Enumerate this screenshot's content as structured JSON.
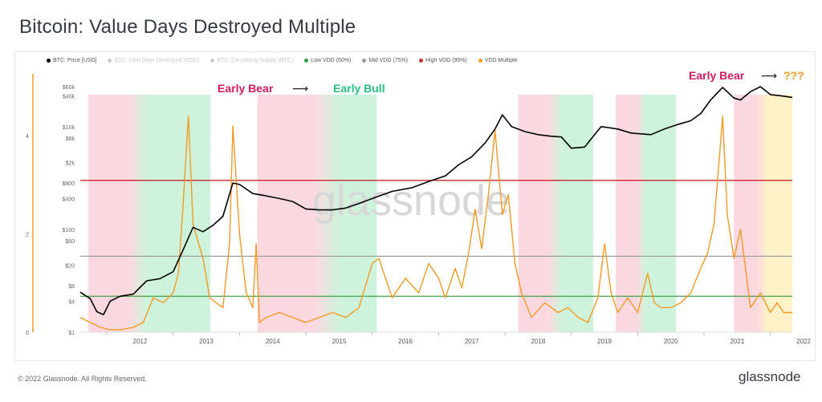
{
  "title": "Bitcoin: Value Days Destroyed Multiple",
  "copyright": "© 2022 Glassnode. All Rights Reserved.",
  "brand": "glassnode",
  "watermark": "glassnode",
  "legend": [
    {
      "label": "BTC: Price [USD]",
      "color": "#000000",
      "faded": false
    },
    {
      "label": "BTC: Coin Days Destroyed (CDD)",
      "color": "#cccccc",
      "faded": true
    },
    {
      "label": "BTC: Circulating Supply (BTC)",
      "color": "#cccccc",
      "faded": true
    },
    {
      "label": "Low VDD (50%)",
      "color": "#2ea043",
      "faded": false
    },
    {
      "label": "Mid VDD (75%)",
      "color": "#9a9a9a",
      "faded": false
    },
    {
      "label": "High VDD (95%)",
      "color": "#d43333",
      "faded": false
    },
    {
      "label": "VDD Multiple",
      "color": "#f59a23",
      "faded": false
    }
  ],
  "annotations": {
    "early_bear_1": "Early Bear",
    "early_bull": "Early Bull",
    "early_bear_2": "Early Bear",
    "question": "???"
  },
  "colors": {
    "bear_zone": "#fbd4dc",
    "bull_zone": "#c9f2d8",
    "yellow_zone": "#fdf0c2",
    "price": "#000000",
    "vdd": "#f59a23",
    "low_line": "#43a047",
    "mid_line": "#9e9e9e",
    "high_line": "#c62828",
    "bear_text": "#d81b60",
    "bull_text": "#26c281"
  },
  "chart_data": {
    "type": "line",
    "title": "Bitcoin: Value Days Destroyed Multiple",
    "x_ticks": [
      "2012",
      "2013",
      "2014",
      "2015",
      "2016",
      "2017",
      "2018",
      "2019",
      "2020",
      "2021",
      "2022"
    ],
    "price_axis": {
      "scale": "log",
      "ticks": [
        "$1",
        "$4",
        "$8",
        "$20",
        "$60",
        "$100",
        "$400",
        "$800",
        "$2k",
        "$6k",
        "$10k",
        "$40k",
        "$60k"
      ],
      "range": [
        1,
        80000
      ]
    },
    "vdd_axis": {
      "ticks": [
        "0",
        "2",
        "4"
      ],
      "range": [
        0,
        5
      ]
    },
    "thresholds": [
      {
        "name": "Low VDD (50%)",
        "price_axis_level": 5
      },
      {
        "name": "Mid VDD (75%)",
        "price_axis_level": 30
      },
      {
        "name": "High VDD (95%)",
        "price_axis_level": 900
      }
    ],
    "zones": [
      {
        "kind": "bear",
        "start": 2011.72,
        "end": 2012.6
      },
      {
        "kind": "bull",
        "start": 2012.6,
        "end": 2013.56
      },
      {
        "kind": "bear",
        "start": 2014.27,
        "end": 2015.5
      },
      {
        "kind": "bull",
        "start": 2015.5,
        "end": 2016.07
      },
      {
        "kind": "bear",
        "start": 2018.2,
        "end": 2018.85
      },
      {
        "kind": "bull",
        "start": 2018.85,
        "end": 2019.33
      },
      {
        "kind": "bear",
        "start": 2019.67,
        "end": 2020.12
      },
      {
        "kind": "bull",
        "start": 2020.12,
        "end": 2020.58
      },
      {
        "kind": "bear",
        "start": 2021.45,
        "end": 2021.95
      },
      {
        "kind": "yellow",
        "start": 2021.95,
        "end": 2022.33
      }
    ],
    "series": [
      {
        "name": "BTC: Price [USD]",
        "x": [
          2011.6,
          2011.75,
          2011.85,
          2011.95,
          2012.05,
          2012.2,
          2012.4,
          2012.6,
          2012.8,
          2013.0,
          2013.15,
          2013.3,
          2013.45,
          2013.6,
          2013.75,
          2013.9,
          2014.0,
          2014.2,
          2014.4,
          2014.6,
          2014.8,
          2015.0,
          2015.2,
          2015.4,
          2015.6,
          2015.8,
          2016.0,
          2016.3,
          2016.6,
          2016.9,
          2017.1,
          2017.3,
          2017.5,
          2017.7,
          2017.85,
          2017.96,
          2018.1,
          2018.3,
          2018.5,
          2018.7,
          2018.85,
          2019.0,
          2019.2,
          2019.45,
          2019.7,
          2019.9,
          2020.2,
          2020.4,
          2020.6,
          2020.8,
          2020.95,
          2021.1,
          2021.28,
          2021.45,
          2021.55,
          2021.7,
          2021.85,
          2022.0,
          2022.15,
          2022.33
        ],
        "values": [
          6,
          4.5,
          2.5,
          2.2,
          4,
          5,
          5.5,
          10,
          11,
          15,
          40,
          110,
          90,
          120,
          180,
          800,
          750,
          500,
          450,
          400,
          350,
          250,
          240,
          240,
          260,
          320,
          400,
          550,
          650,
          900,
          1100,
          1800,
          2600,
          4800,
          9000,
          17000,
          10000,
          8000,
          7000,
          6500,
          6300,
          3800,
          4000,
          10000,
          9000,
          7500,
          7000,
          9000,
          11000,
          13000,
          18000,
          33000,
          58000,
          36000,
          33000,
          48000,
          60000,
          42000,
          40000,
          37000
        ]
      },
      {
        "name": "VDD Multiple",
        "x": [
          2011.6,
          2011.75,
          2011.9,
          2012.05,
          2012.2,
          2012.4,
          2012.55,
          2012.7,
          2012.85,
          2013.0,
          2013.08,
          2013.15,
          2013.23,
          2013.3,
          2013.45,
          2013.55,
          2013.65,
          2013.75,
          2013.85,
          2013.9,
          2014.0,
          2014.1,
          2014.2,
          2014.25,
          2014.3,
          2014.4,
          2014.6,
          2014.8,
          2015.0,
          2015.2,
          2015.4,
          2015.6,
          2015.8,
          2016.0,
          2016.1,
          2016.3,
          2016.5,
          2016.7,
          2016.85,
          2017.0,
          2017.1,
          2017.25,
          2017.35,
          2017.45,
          2017.55,
          2017.65,
          2017.75,
          2017.85,
          2017.96,
          2018.05,
          2018.15,
          2018.25,
          2018.4,
          2018.6,
          2018.8,
          2018.95,
          2019.1,
          2019.25,
          2019.4,
          2019.5,
          2019.6,
          2019.7,
          2019.85,
          2020.0,
          2020.15,
          2020.25,
          2020.35,
          2020.5,
          2020.65,
          2020.8,
          2020.95,
          2021.05,
          2021.15,
          2021.28,
          2021.35,
          2021.45,
          2021.55,
          2021.7,
          2021.85,
          2022.0,
          2022.1,
          2022.2,
          2022.33
        ],
        "values": [
          0.3,
          0.2,
          0.1,
          0.05,
          0.05,
          0.1,
          0.2,
          0.7,
          0.6,
          0.8,
          1.2,
          2.6,
          4.4,
          2.2,
          1.5,
          0.7,
          0.6,
          0.5,
          1.8,
          4.2,
          2.0,
          0.8,
          0.5,
          1.8,
          0.2,
          0.3,
          0.4,
          0.3,
          0.2,
          0.3,
          0.4,
          0.3,
          0.5,
          1.4,
          1.5,
          0.7,
          1.1,
          0.8,
          1.4,
          1.1,
          0.7,
          1.3,
          0.9,
          1.6,
          2.5,
          1.7,
          2.8,
          4.1,
          2.4,
          2.8,
          1.4,
          0.8,
          0.3,
          0.6,
          0.4,
          0.5,
          0.3,
          0.2,
          0.7,
          1.8,
          0.8,
          0.4,
          0.7,
          0.4,
          1.2,
          0.6,
          0.5,
          0.5,
          0.6,
          0.8,
          1.3,
          1.6,
          2.2,
          4.4,
          2.4,
          1.5,
          2.1,
          0.5,
          0.8,
          0.4,
          0.6,
          0.4,
          0.4
        ]
      }
    ]
  }
}
